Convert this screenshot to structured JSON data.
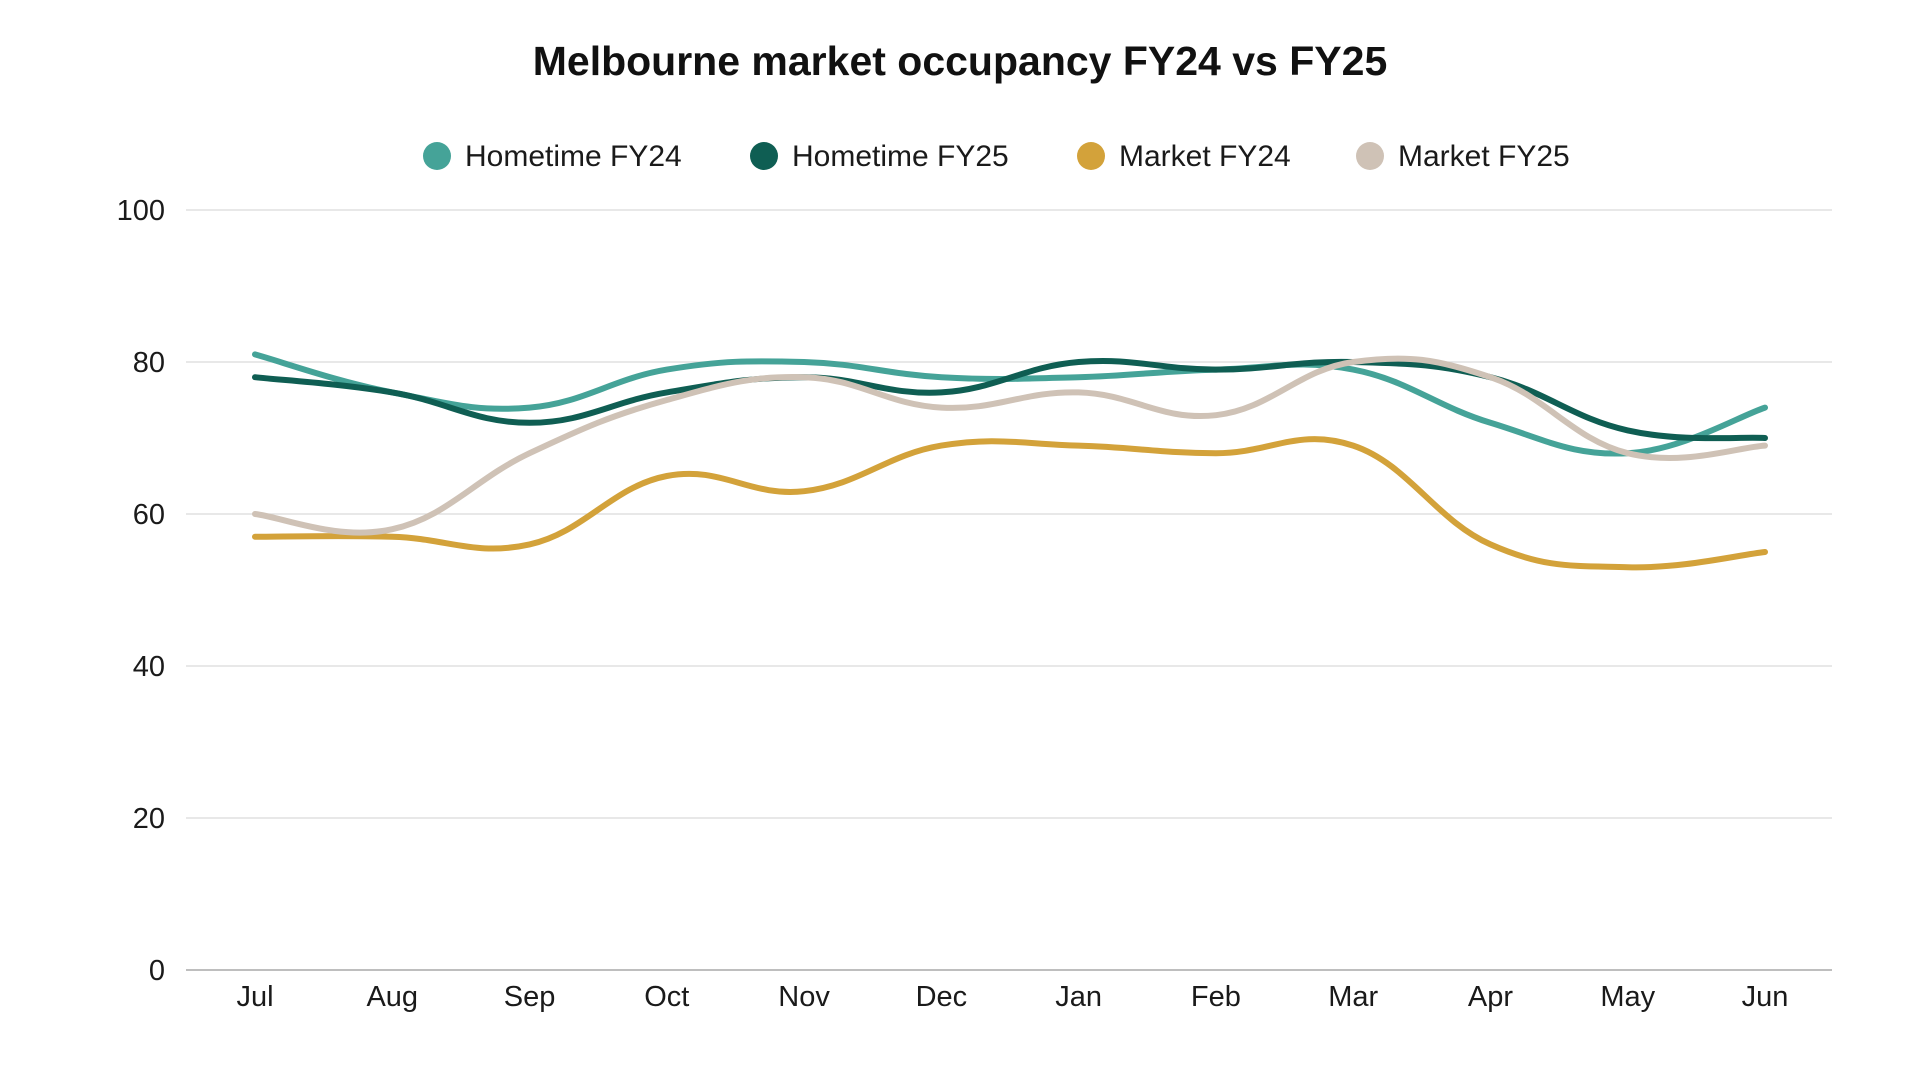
{
  "chart_data": {
    "type": "line",
    "title": "Melbourne market occupancy FY24 vs FY25",
    "xlabel": "",
    "ylabel": "",
    "categories": [
      "Jul",
      "Aug",
      "Sep",
      "Oct",
      "Nov",
      "Dec",
      "Jan",
      "Feb",
      "Mar",
      "Apr",
      "May",
      "Jun"
    ],
    "ylim": [
      0,
      100
    ],
    "yticks": [
      0,
      20,
      40,
      60,
      80,
      100
    ],
    "grid": true,
    "legend_position": "top-center",
    "smooth": true,
    "series": [
      {
        "name": "Hometime FY24",
        "color": "#45a398",
        "values": [
          81,
          76,
          74,
          79,
          80,
          78,
          78,
          79,
          79,
          72,
          68,
          74
        ]
      },
      {
        "name": "Hometime FY25",
        "color": "#0f5e53",
        "values": [
          78,
          76,
          72,
          76,
          78,
          76,
          80,
          79,
          80,
          78,
          71,
          70
        ]
      },
      {
        "name": "Market FY24",
        "color": "#d3a23a",
        "values": [
          57,
          57,
          56,
          65,
          63,
          69,
          69,
          68,
          69,
          56,
          53,
          55
        ]
      },
      {
        "name": "Market FY25",
        "color": "#cfc2b6",
        "values": [
          60,
          58,
          68,
          75,
          78,
          74,
          76,
          73,
          80,
          78,
          68,
          69
        ]
      }
    ]
  }
}
